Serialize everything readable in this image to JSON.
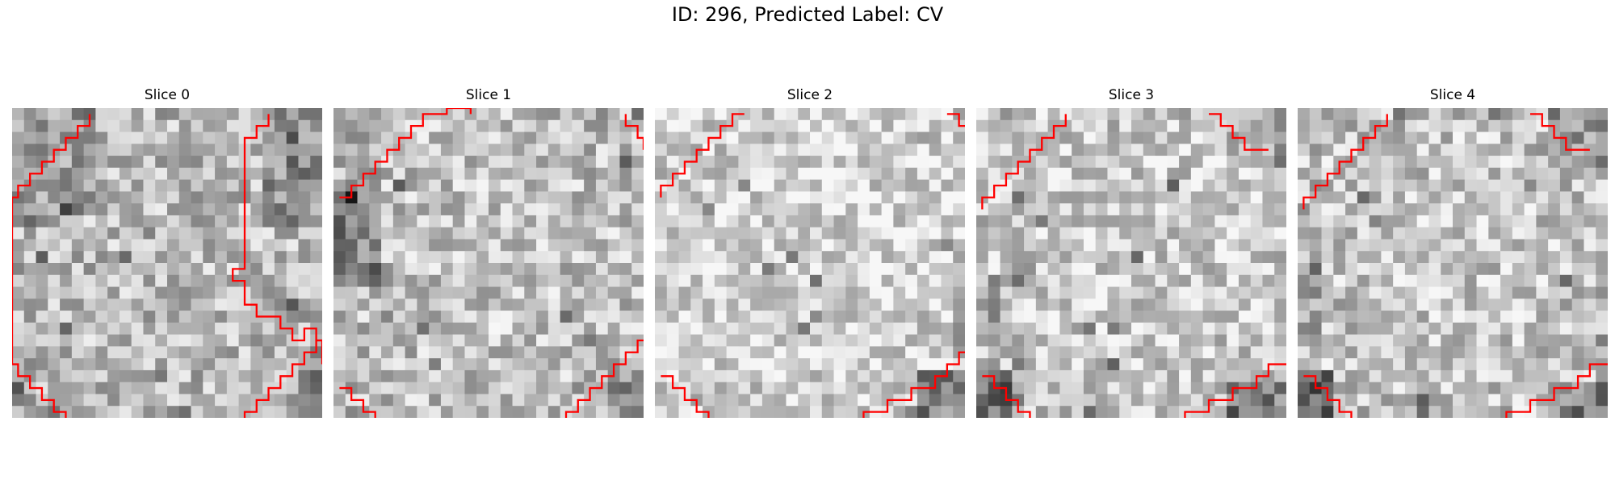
{
  "figure": {
    "title": "ID: 296, Predicted Label: CV",
    "contour_color": "#ff0000",
    "slices": [
      {
        "title": "Slice 0",
        "base": "0 0.25,0 0.3,0 0.35,0 0.4,0 0.45,0 0.5,0 0.55,0 0.55,0.05 0.6,0.05 0.6,0.15 0.6,0.25 0.65,0.3 0.75,0.4 0.85,0.4 0.95,0.45 1.05,0.45 1.15,0.45 1.3,0.45 1.45,0.45 1.6,0.5 1.6,0.65 1.3,0.65 1.15,0.6 1.05,0.55 0.95,0.5 0.9,0.5 0.85,0.45 0.8,0.35 0.8,0.25 0.75,0.15 0.7,0.1 0.65,0.05 0.6,0.05 0.55,0.05 0.5,0.05 0.45,0.05 0.4,0.05 0.35,0.05 0.3,0.05 0.25,0.05 0.2,0.05 0.15",
        "contours": [
          [
            [
              6,
              0
            ],
            [
              6,
              1
            ],
            [
              5,
              1
            ],
            [
              5,
              2
            ],
            [
              4,
              2
            ],
            [
              4,
              3
            ],
            [
              3,
              3
            ],
            [
              3,
              4
            ],
            [
              2,
              4
            ],
            [
              2,
              5
            ],
            [
              1,
              5
            ],
            [
              1,
              6
            ],
            [
              0,
              6
            ],
            [
              0,
              7
            ],
            [
              -1,
              7
            ],
            [
              -1,
              8
            ],
            [
              -2,
              8
            ],
            [
              -2,
              9
            ],
            [
              -2,
              10
            ],
            [
              -3,
              10
            ],
            [
              -3,
              11
            ],
            [
              -3,
              12
            ],
            [
              -3,
              13
            ],
            [
              -3,
              14
            ],
            [
              -3,
              15
            ],
            [
              -3,
              16
            ],
            [
              -2,
              16
            ],
            [
              -2,
              17
            ],
            [
              -2,
              18
            ],
            [
              -2,
              19
            ],
            [
              -1,
              19
            ],
            [
              -1,
              20
            ],
            [
              -1,
              21
            ],
            [
              0,
              21
            ],
            [
              0,
              22
            ],
            [
              1,
              22
            ],
            [
              1,
              23
            ],
            [
              2,
              23
            ],
            [
              2,
              24
            ],
            [
              3,
              24
            ],
            [
              3,
              25
            ],
            [
              4,
              25
            ],
            [
              4,
              26
            ]
          ],
          [
            [
              21,
              0
            ],
            [
              21,
              1
            ],
            [
              20,
              1
            ],
            [
              20,
              2
            ],
            [
              19,
              2
            ],
            [
              19,
              3
            ],
            [
              19,
              4
            ],
            [
              19,
              5
            ],
            [
              19,
              6
            ],
            [
              19,
              7
            ],
            [
              19,
              8
            ],
            [
              19,
              9
            ],
            [
              19,
              10
            ],
            [
              19,
              11
            ],
            [
              19,
              12
            ],
            [
              19,
              13
            ],
            [
              18,
              13
            ],
            [
              18,
              14
            ],
            [
              19,
              14
            ],
            [
              19,
              15
            ],
            [
              19,
              16
            ],
            [
              20,
              16
            ],
            [
              20,
              17
            ],
            [
              21,
              17
            ],
            [
              22,
              17
            ],
            [
              22,
              18
            ],
            [
              23,
              18
            ],
            [
              23,
              19
            ],
            [
              24,
              19
            ],
            [
              24,
              18
            ],
            [
              25,
              18
            ],
            [
              25,
              19
            ],
            [
              26,
              19
            ]
          ],
          [
            [
              19,
              26
            ],
            [
              19,
              25
            ],
            [
              20,
              25
            ],
            [
              20,
              24
            ],
            [
              21,
              24
            ],
            [
              21,
              23
            ],
            [
              22,
              23
            ],
            [
              22,
              22
            ],
            [
              23,
              22
            ],
            [
              23,
              21
            ],
            [
              24,
              21
            ],
            [
              24,
              20
            ],
            [
              25,
              20
            ],
            [
              25,
              19
            ],
            [
              26,
              19
            ],
            [
              26,
              20
            ],
            [
              26,
              21
            ]
          ]
        ]
      },
      {
        "title": "Slice 1",
        "base": "0.1 0.4,0 0.45,0 0.5,0 0.55,0 0.6,0 0.65,0 0.7,0 0.65,0.1 0.6,0.1 0.55,0.15 0.5,0.15 0.45,0.15 0.4,0.2 0.35,0.2 0.3,0.25 0.25,0.25 0.2,0.25 0.15,0.3 0.1,0.3 0.05,0.3 0,0.3",
        "contours": [
          [
            [
              0,
              7
            ],
            [
              1,
              7
            ],
            [
              1,
              6
            ],
            [
              2,
              6
            ],
            [
              2,
              5
            ],
            [
              3,
              5
            ],
            [
              3,
              4
            ],
            [
              4,
              4
            ],
            [
              4,
              3
            ],
            [
              5,
              3
            ],
            [
              5,
              2
            ],
            [
              6,
              2
            ],
            [
              6,
              1
            ],
            [
              7,
              1
            ],
            [
              7,
              0
            ],
            [
              8,
              0
            ],
            [
              9,
              0
            ],
            [
              9,
              -1
            ],
            [
              10,
              -1
            ],
            [
              11,
              -1
            ],
            [
              11,
              0
            ]
          ],
          [
            [
              24,
              0
            ],
            [
              24,
              1
            ],
            [
              25,
              1
            ],
            [
              25,
              2
            ],
            [
              26,
              2
            ],
            [
              26,
              3
            ]
          ],
          [
            [
              19,
              26
            ],
            [
              19,
              25
            ],
            [
              20,
              25
            ],
            [
              20,
              24
            ],
            [
              21,
              24
            ],
            [
              21,
              23
            ],
            [
              22,
              23
            ],
            [
              22,
              22
            ],
            [
              23,
              22
            ],
            [
              23,
              21
            ],
            [
              24,
              21
            ],
            [
              24,
              20
            ],
            [
              25,
              20
            ],
            [
              25,
              19
            ],
            [
              26,
              19
            ]
          ],
          [
            [
              0,
              23
            ],
            [
              1,
              23
            ],
            [
              1,
              24
            ],
            [
              2,
              24
            ],
            [
              2,
              25
            ],
            [
              3,
              25
            ],
            [
              3,
              26
            ]
          ]
        ]
      },
      {
        "title": "Slice 2",
        "base": "0.15 0.45,0.05 0.5,0.05 0.55,0 0.6,0 0.65,0 0.7,0 0.75,0 0.8,0 0.85,0 0.9,0 0.95,0 1,0 1.05,0 1.1,0 1.15,0.05 1.2,0.05 1.25,0.1 1.3,0.1 1.35,0.15",
        "contours": [
          [
            [
              0,
              7
            ],
            [
              0,
              6
            ],
            [
              1,
              6
            ],
            [
              1,
              5
            ],
            [
              2,
              5
            ],
            [
              2,
              4
            ],
            [
              3,
              4
            ],
            [
              3,
              3
            ],
            [
              4,
              3
            ],
            [
              4,
              2
            ],
            [
              5,
              2
            ],
            [
              5,
              1
            ],
            [
              6,
              1
            ],
            [
              6,
              0
            ],
            [
              7,
              0
            ]
          ],
          [
            [
              24,
              0
            ],
            [
              25,
              0
            ],
            [
              25,
              1
            ],
            [
              26,
              1
            ]
          ],
          [
            [
              17,
              26
            ],
            [
              17,
              25
            ],
            [
              18,
              25
            ],
            [
              19,
              25
            ],
            [
              19,
              24
            ],
            [
              20,
              24
            ],
            [
              21,
              24
            ],
            [
              21,
              23
            ],
            [
              22,
              23
            ],
            [
              23,
              23
            ],
            [
              23,
              22
            ],
            [
              24,
              22
            ],
            [
              24,
              21
            ],
            [
              25,
              21
            ],
            [
              25,
              20
            ],
            [
              26,
              20
            ]
          ],
          [
            [
              0,
              22
            ],
            [
              1,
              22
            ],
            [
              1,
              23
            ],
            [
              2,
              23
            ],
            [
              2,
              24
            ],
            [
              3,
              24
            ],
            [
              3,
              25
            ],
            [
              4,
              25
            ],
            [
              4,
              26
            ]
          ]
        ]
      },
      {
        "title": "Slice 3",
        "base": "0.05 0.4,0.05 0.45,0 0.5,0 0.55,0 0.6,0 0.65,0 0.7,0 0.75,0 0.8,0 0.85,0 0.9,0.05 0.95,0.05 1,0.05 1.05,0.1 1.1,0.1 1.15,0.1 1.2,0.15 1.25,0.15 1.3,0.15 1.35,0.2",
        "contours": [
          [
            [
              0,
              8
            ],
            [
              0,
              7
            ],
            [
              1,
              7
            ],
            [
              1,
              6
            ],
            [
              2,
              6
            ],
            [
              2,
              5
            ],
            [
              3,
              5
            ],
            [
              3,
              4
            ],
            [
              4,
              4
            ],
            [
              4,
              3
            ],
            [
              5,
              3
            ],
            [
              5,
              2
            ],
            [
              6,
              2
            ],
            [
              6,
              1
            ],
            [
              7,
              1
            ],
            [
              7,
              0
            ]
          ],
          [
            [
              19,
              0
            ],
            [
              20,
              0
            ],
            [
              20,
              1
            ],
            [
              21,
              1
            ],
            [
              21,
              2
            ],
            [
              22,
              2
            ],
            [
              22,
              3
            ],
            [
              23,
              3
            ],
            [
              24,
              3
            ]
          ],
          [
            [
              17,
              26
            ],
            [
              17,
              25
            ],
            [
              18,
              25
            ],
            [
              19,
              25
            ],
            [
              19,
              24
            ],
            [
              20,
              24
            ],
            [
              21,
              24
            ],
            [
              21,
              23
            ],
            [
              22,
              23
            ],
            [
              23,
              23
            ],
            [
              23,
              22
            ],
            [
              24,
              22
            ],
            [
              24,
              21
            ],
            [
              25,
              21
            ],
            [
              26,
              21
            ]
          ],
          [
            [
              0,
              22
            ],
            [
              1,
              22
            ],
            [
              1,
              23
            ],
            [
              2,
              23
            ],
            [
              2,
              24
            ],
            [
              3,
              24
            ],
            [
              3,
              25
            ],
            [
              4,
              25
            ],
            [
              4,
              26
            ]
          ]
        ]
      },
      {
        "title": "Slice 4",
        "base": "0.05 0.45,0 0.5,0 0.55,0 0.6,0 0.65,0 0.7,0 0.75,0 0.8,0 0.85,0 0.9,0.05 0.95,0.05 1,0.05 1.05,0.1 1.1,0.1 1.15,0.1 1.2,0.15 1.25,0.15 1.3,0.15 1.35,0.2",
        "contours": [
          [
            [
              0,
              8
            ],
            [
              0,
              7
            ],
            [
              1,
              7
            ],
            [
              1,
              6
            ],
            [
              2,
              6
            ],
            [
              2,
              5
            ],
            [
              3,
              5
            ],
            [
              3,
              4
            ],
            [
              4,
              4
            ],
            [
              4,
              3
            ],
            [
              5,
              3
            ],
            [
              5,
              2
            ],
            [
              6,
              2
            ],
            [
              6,
              1
            ],
            [
              7,
              1
            ],
            [
              7,
              0
            ]
          ],
          [
            [
              19,
              0
            ],
            [
              20,
              0
            ],
            [
              20,
              1
            ],
            [
              21,
              1
            ],
            [
              21,
              2
            ],
            [
              22,
              2
            ],
            [
              22,
              3
            ],
            [
              23,
              3
            ],
            [
              24,
              3
            ]
          ],
          [
            [
              17,
              26
            ],
            [
              17,
              25
            ],
            [
              18,
              25
            ],
            [
              19,
              25
            ],
            [
              19,
              24
            ],
            [
              20,
              24
            ],
            [
              21,
              24
            ],
            [
              21,
              23
            ],
            [
              22,
              23
            ],
            [
              23,
              23
            ],
            [
              23,
              22
            ],
            [
              24,
              22
            ],
            [
              24,
              21
            ],
            [
              25,
              21
            ],
            [
              26,
              21
            ]
          ],
          [
            [
              0,
              22
            ],
            [
              1,
              22
            ],
            [
              1,
              23
            ],
            [
              2,
              23
            ],
            [
              2,
              24
            ],
            [
              3,
              24
            ],
            [
              3,
              25
            ],
            [
              4,
              25
            ],
            [
              4,
              26
            ]
          ]
        ]
      }
    ]
  }
}
